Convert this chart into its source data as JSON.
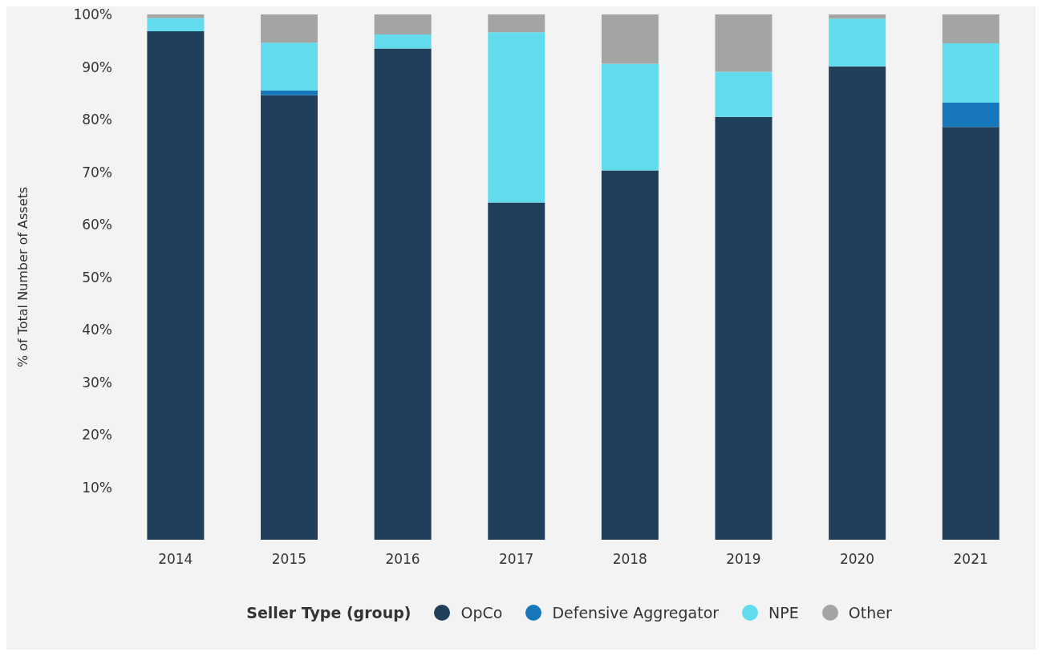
{
  "chart_data": {
    "type": "bar",
    "stacked": true,
    "ylabel": "% of Total Number of Assets",
    "legend_title": "Seller Type (group)",
    "legend": "bottom",
    "grid": false,
    "categories": [
      "2014",
      "2015",
      "2016",
      "2017",
      "2018",
      "2019",
      "2020",
      "2021"
    ],
    "series": [
      {
        "name": "OpCo",
        "color": "#1f3f5b",
        "values": [
          96.8,
          84.6,
          93.5,
          64.2,
          70.3,
          80.5,
          90.1,
          78.6
        ]
      },
      {
        "name": "Defensive Aggregator",
        "color": "#1777bb",
        "values": [
          null,
          0.9,
          null,
          null,
          null,
          null,
          null,
          4.6
        ]
      },
      {
        "name": "NPE",
        "color": "#62dbed",
        "values": [
          2.5,
          9.1,
          2.7,
          32.4,
          20.3,
          8.6,
          9.1,
          11.3
        ]
      },
      {
        "name": "Other",
        "color": "#a3a5a5",
        "values": [
          0.7,
          5.4,
          3.8,
          3.4,
          9.4,
          10.9,
          0.8,
          5.5
        ]
      }
    ],
    "ylim": [
      0,
      100
    ],
    "yticks": [
      {
        "value": 10,
        "label": "10%"
      },
      {
        "value": 20,
        "label": "20%"
      },
      {
        "value": 30,
        "label": "30%"
      },
      {
        "value": 40,
        "label": "40%"
      },
      {
        "value": 50,
        "label": "50%"
      },
      {
        "value": 60,
        "label": "60%"
      },
      {
        "value": 70,
        "label": "70%"
      },
      {
        "value": 80,
        "label": "80%"
      },
      {
        "value": 90,
        "label": "90%"
      },
      {
        "value": 100,
        "label": "100%"
      }
    ]
  }
}
